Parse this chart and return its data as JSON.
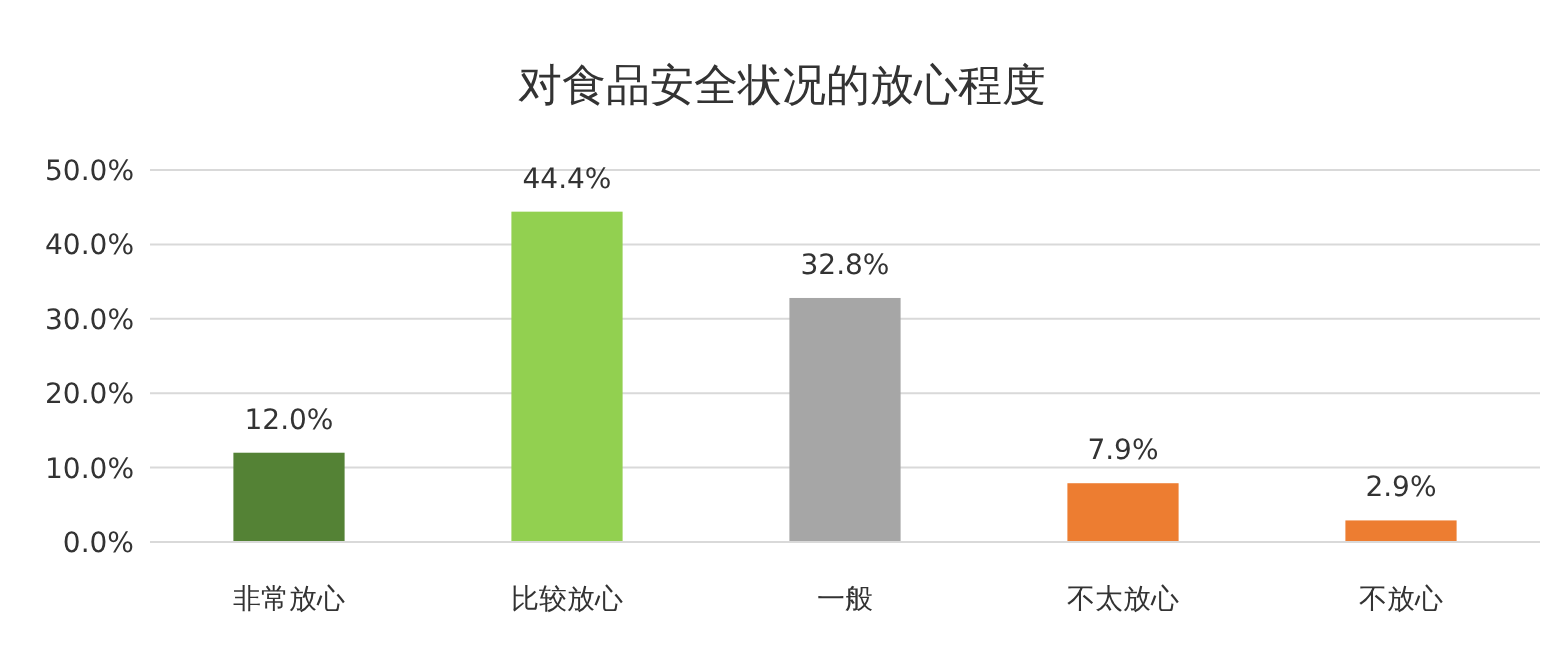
{
  "chart_data": {
    "type": "bar",
    "title": "对食品安全状况的放心程度",
    "categories": [
      "非常放心",
      "比较放心",
      "一般",
      "不太放心",
      "不放心"
    ],
    "values": [
      12.0,
      44.4,
      32.8,
      7.9,
      2.9
    ],
    "value_labels": [
      "12.0%",
      "44.4%",
      "32.8%",
      "7.9%",
      "2.9%"
    ],
    "colors": [
      "#548235",
      "#92d050",
      "#a6a6a6",
      "#ed7d31",
      "#ed7d31"
    ],
    "ylim": [
      0,
      50
    ],
    "yticks": [
      {
        "value": 0,
        "label": "0.0%"
      },
      {
        "value": 10,
        "label": "10.0%"
      },
      {
        "value": 20,
        "label": "20.0%"
      },
      {
        "value": 30,
        "label": "30.0%"
      },
      {
        "value": 40,
        "label": "40.0%"
      },
      {
        "value": 50,
        "label": "50.0%"
      }
    ],
    "grid": "y"
  }
}
